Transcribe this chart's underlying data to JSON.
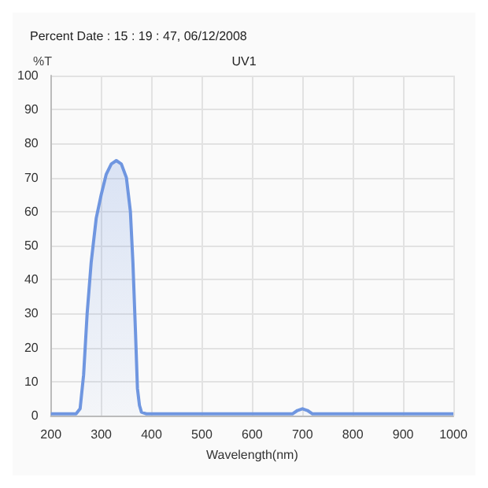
{
  "chart_data": {
    "type": "area",
    "title": "UV1",
    "subtitle": "Percent Date : 15 : 19 : 47, 06/12/2008",
    "xlabel": "Wavelength(nm)",
    "ylabel": "%T",
    "series": [
      {
        "color": "#6f96e0",
        "x": [
          200,
          250,
          258,
          265,
          272,
          280,
          290,
          300,
          310,
          320,
          330,
          340,
          350,
          358,
          363,
          368,
          372,
          376,
          380,
          390,
          680,
          690,
          700,
          710,
          720,
          1000
        ],
        "values": [
          0.5,
          0.5,
          2,
          12,
          30,
          45,
          58,
          65,
          71,
          74,
          75,
          74,
          70,
          60,
          45,
          25,
          8,
          3,
          1,
          0.5,
          0.5,
          1.5,
          2,
          1.5,
          0.5,
          0.5
        ]
      }
    ],
    "xlim": [
      200,
      1000
    ],
    "xticks": [
      200,
      300,
      400,
      500,
      600,
      700,
      800,
      900,
      1000
    ],
    "ylim": [
      0,
      100
    ],
    "yticks": [
      0,
      10,
      20,
      30,
      40,
      50,
      60,
      70,
      80,
      90,
      100
    ],
    "grid": true,
    "marker": "none"
  }
}
